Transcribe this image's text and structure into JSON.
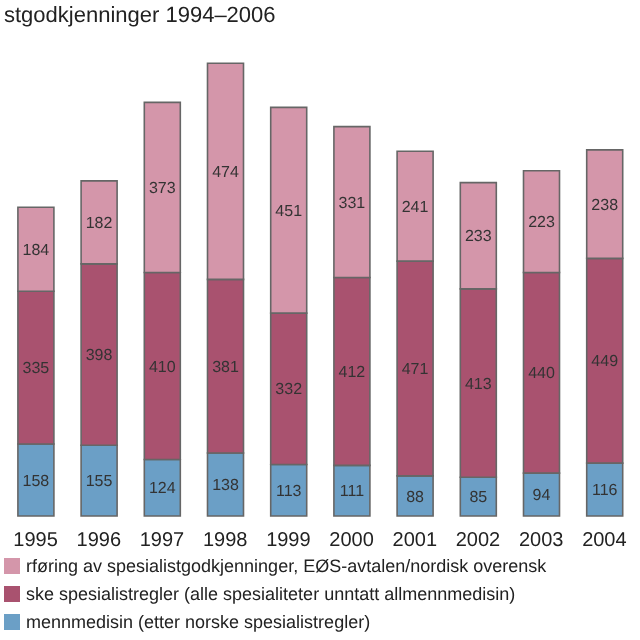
{
  "chart_data": {
    "type": "bar",
    "title": "stgodkjenninger 1994–2006",
    "categories": [
      "1995",
      "1996",
      "1997",
      "1998",
      "1999",
      "2000",
      "2001",
      "2002",
      "2003",
      "2004"
    ],
    "stacked": true,
    "data_labels": true,
    "legend": "bottom",
    "series": [
      {
        "name": "mennmedisin (etter norske spesialistregler)",
        "color": "#6b9fc6",
        "values": [
          158,
          155,
          124,
          138,
          113,
          111,
          88,
          85,
          94,
          116
        ]
      },
      {
        "name": "ske spesialistregler (alle spesialiteter unntatt allmennmedisin)",
        "color": "#a9526f",
        "values": [
          335,
          398,
          410,
          381,
          332,
          412,
          471,
          413,
          440,
          449
        ]
      },
      {
        "name": "rføring av spesialistgodkjenninger, EØS-avtalen/nordisk overensk",
        "color": "#d496aa",
        "values": [
          184,
          182,
          373,
          474,
          451,
          331,
          241,
          233,
          223,
          238
        ]
      }
    ]
  }
}
